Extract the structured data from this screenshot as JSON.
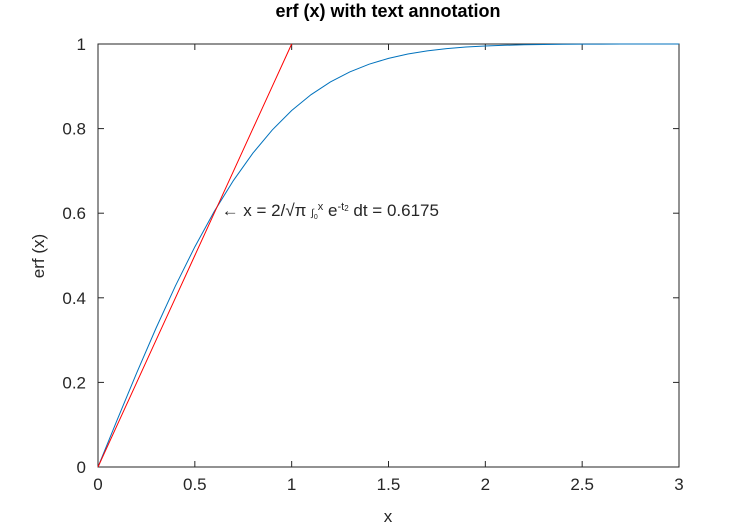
{
  "chart_data": {
    "type": "line",
    "title": "erf (x) with text annotation",
    "xlabel": "x",
    "ylabel": "erf (x)",
    "x": [
      0,
      0.1,
      0.2,
      0.3,
      0.4,
      0.5,
      0.6,
      0.7,
      0.8,
      0.9,
      1.0,
      1.1,
      1.2,
      1.3,
      1.4,
      1.5,
      1.6,
      1.7,
      1.8,
      1.9,
      2.0,
      2.1,
      2.2,
      2.3,
      2.4,
      2.5,
      2.6,
      2.7,
      2.8,
      2.9,
      3.0
    ],
    "series": [
      {
        "color": "#0072bd",
        "values": [
          0,
          0.1125,
          0.2227,
          0.3286,
          0.4284,
          0.5205,
          0.6039,
          0.6778,
          0.7421,
          0.7969,
          0.8427,
          0.8802,
          0.9103,
          0.934,
          0.9523,
          0.9661,
          0.9763,
          0.9838,
          0.9891,
          0.9928,
          0.9953,
          0.997,
          0.9981,
          0.9989,
          0.9993,
          0.9996,
          0.9998,
          0.9999,
          0.9999,
          1.0,
          1.0
        ]
      },
      {
        "color": "#ff0000",
        "values": [
          0,
          0.1,
          0.2,
          0.3,
          0.4,
          0.5,
          0.6,
          0.7,
          0.8,
          0.9,
          1.0,
          null,
          null,
          null,
          null,
          null,
          null,
          null,
          null,
          null,
          null,
          null,
          null,
          null,
          null,
          null,
          null,
          null,
          null,
          null,
          null
        ]
      }
    ],
    "xlim": [
      0,
      3
    ],
    "xticks": [
      0,
      0.5,
      1,
      1.5,
      2,
      2.5,
      3
    ],
    "ylim": [
      0,
      1
    ],
    "yticks": [
      0,
      0.2,
      0.4,
      0.6,
      0.8,
      1
    ],
    "annotation": {
      "x": 0.6175,
      "y": 0.6175,
      "parts": [
        {
          "text": "← x = 2/√π ",
          "shift": "normal"
        },
        {
          "text": "∫",
          "shift": "small"
        },
        {
          "text": "0",
          "shift": "sub"
        },
        {
          "text": "x",
          "shift": "super"
        },
        {
          "text": " e",
          "shift": "normal"
        },
        {
          "text": "-t",
          "shift": "super"
        },
        {
          "text": "2",
          "shift": "super2"
        },
        {
          "text": " dt = 0.6175",
          "shift": "normal"
        }
      ]
    }
  }
}
